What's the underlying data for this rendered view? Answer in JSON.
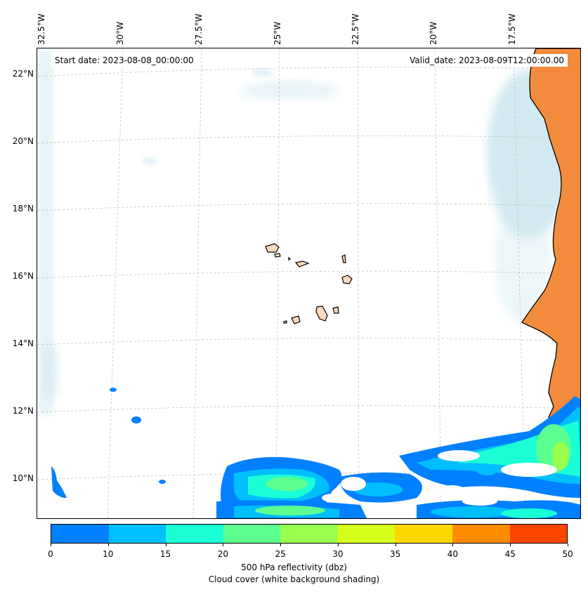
{
  "map": {
    "start_date": "Start date: 2023-08-08_00:00:00",
    "valid_date": "Valid_date: 2023-08-09T12:00:00.00",
    "lon_labels": [
      "32.5°W",
      "30°W",
      "27.5°W",
      "25°W",
      "22.5°W",
      "20°W",
      "17.5°W"
    ],
    "lat_labels": [
      "22°N",
      "20°N",
      "18°N",
      "16°N",
      "14°N",
      "12°N",
      "10°N"
    ],
    "colors": {
      "land": "#f28c3c",
      "cloud": "#add8e6",
      "coast": "#000000",
      "grid": "#bbbbbb"
    }
  },
  "colorbar": {
    "ticks": [
      "0",
      "10",
      "15",
      "20",
      "25",
      "30",
      "35",
      "40",
      "45",
      "50"
    ],
    "colors": [
      "#0080ff",
      "#00bfff",
      "#1affd5",
      "#5cff8f",
      "#99ff4d",
      "#d5ff1a",
      "#ffd700",
      "#ff8c00",
      "#ff4500"
    ],
    "label_line1": "500 hPa reflectivity (dbz)",
    "label_line2": "Cloud cover (white background shading)"
  }
}
